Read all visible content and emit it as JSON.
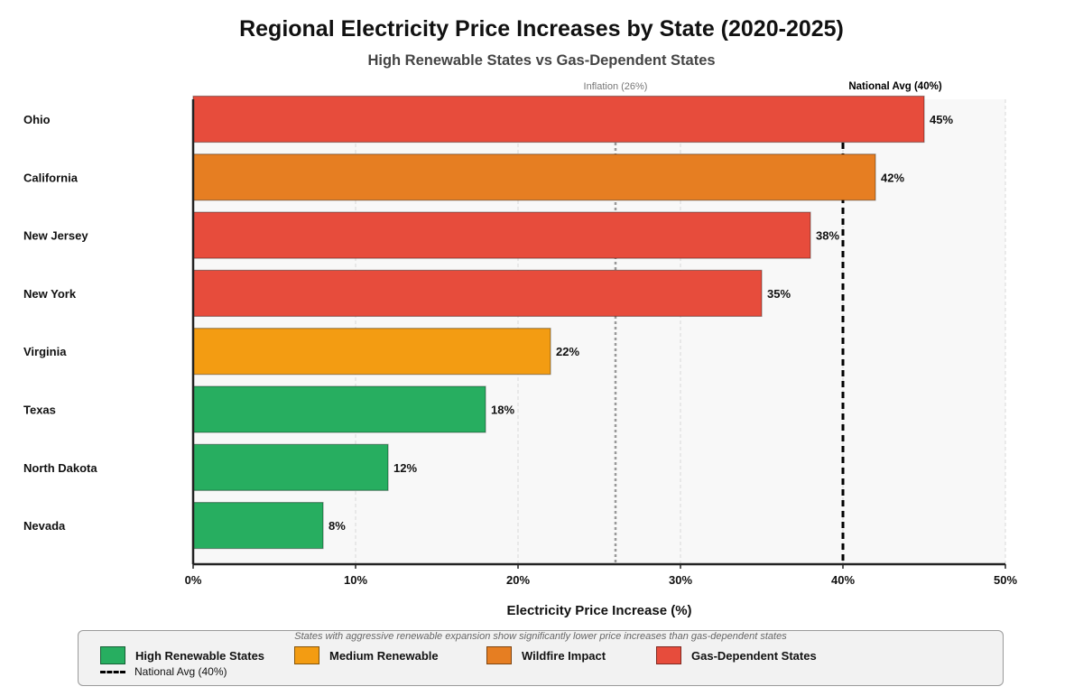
{
  "chart_data": {
    "type": "bar",
    "orientation": "horizontal",
    "title": "Regional Electricity Price Increases by State (2020-2025)",
    "subtitle": "High Renewable States vs Gas-Dependent States",
    "xlabel": "Electricity Price Increase (%)",
    "ylabel": "",
    "xlim": [
      0,
      50
    ],
    "xticks": [
      0,
      10,
      20,
      30,
      40,
      50
    ],
    "xtick_labels": [
      "0%",
      "10%",
      "20%",
      "30%",
      "40%",
      "50%"
    ],
    "grid": true,
    "categories": [
      "Ohio",
      "California",
      "New Jersey",
      "New York",
      "Virginia",
      "Texas",
      "North Dakota",
      "Nevada"
    ],
    "values": [
      45,
      42,
      38,
      35,
      22,
      18,
      12,
      8
    ],
    "value_labels": [
      "45%",
      "42%",
      "38%",
      "35%",
      "22%",
      "18%",
      "12%",
      "8%"
    ],
    "groups": [
      "gas",
      "wildfire",
      "gas",
      "gas",
      "medium",
      "high",
      "high",
      "high"
    ],
    "reference_lines": [
      {
        "name": "inflation",
        "value": 26,
        "label": "Inflation (26%)",
        "style": "dotted",
        "color": "#999999"
      },
      {
        "name": "national-avg",
        "value": 40,
        "label": "National Avg (40%)",
        "style": "dashed",
        "color": "#000000"
      }
    ]
  },
  "colors": {
    "high": "#27ae60",
    "medium": "#f39c12",
    "wildfire": "#e67e22",
    "gas": "#e74c3c",
    "plot_bg": "#f8f8f8"
  },
  "legend": {
    "note": "States with aggressive renewable expansion show significantly lower price increases than gas-dependent states",
    "items": [
      {
        "key": "high",
        "label": "High Renewable States"
      },
      {
        "key": "medium",
        "label": "Medium Renewable"
      },
      {
        "key": "wildfire",
        "label": "Wildfire Impact"
      },
      {
        "key": "gas",
        "label": "Gas-Dependent States"
      }
    ],
    "line_label": "National Avg (40%)"
  }
}
